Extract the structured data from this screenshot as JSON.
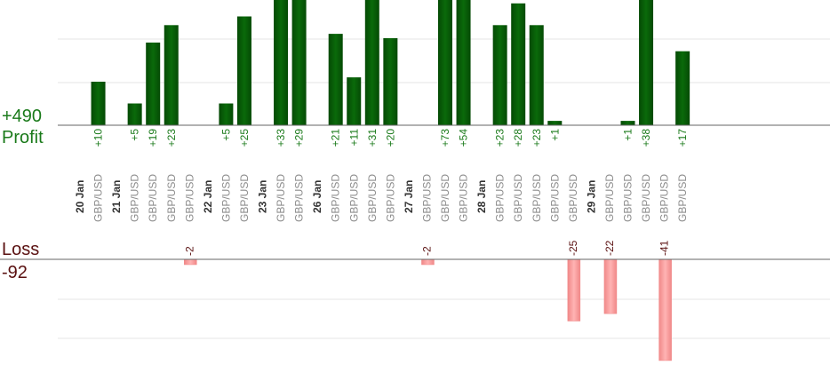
{
  "summary": {
    "profit_total": "+490",
    "profit_label": "Profit",
    "loss_label": "Loss",
    "loss_total": "-92"
  },
  "colors": {
    "profit_bar": "#0a6a0a",
    "profit_bar_dark": "#054a05",
    "profit_text": "#1a7a1a",
    "loss_bar": "#ffb3b3",
    "loss_bar_edge": "#f08888",
    "loss_text": "#5a1010",
    "axis": "#666666",
    "grid": "#e6e6e6",
    "date_text": "#333333",
    "pair_text": "#8c8c8c"
  },
  "chart_data": {
    "type": "bar",
    "axis_ranges": {
      "profit": [
        0,
        60
      ],
      "loss": [
        -45,
        0
      ]
    },
    "grid": true,
    "columns": [
      {
        "kind": "date",
        "label": "20 Jan"
      },
      {
        "kind": "trade",
        "label": "GBP/USD",
        "value": 10,
        "value_label": "+10"
      },
      {
        "kind": "date",
        "label": "21 Jan"
      },
      {
        "kind": "trade",
        "label": "GBP/USD",
        "value": 5,
        "value_label": "+5"
      },
      {
        "kind": "trade",
        "label": "GBP/USD",
        "value": 19,
        "value_label": "+19"
      },
      {
        "kind": "trade",
        "label": "GBP/USD",
        "value": 23,
        "value_label": "+23"
      },
      {
        "kind": "trade",
        "label": "GBP/USD",
        "value": -2,
        "value_label": "-2"
      },
      {
        "kind": "date",
        "label": "22 Jan"
      },
      {
        "kind": "trade",
        "label": "GBP/USD",
        "value": 5,
        "value_label": "+5"
      },
      {
        "kind": "trade",
        "label": "GBP/USD",
        "value": 25,
        "value_label": "+25"
      },
      {
        "kind": "date",
        "label": "23 Jan"
      },
      {
        "kind": "trade",
        "label": "GBP/USD",
        "value": 33,
        "value_label": "+33"
      },
      {
        "kind": "trade",
        "label": "GBP/USD",
        "value": 29,
        "value_label": "+29"
      },
      {
        "kind": "date",
        "label": "26 Jan"
      },
      {
        "kind": "trade",
        "label": "GBP/USD",
        "value": 21,
        "value_label": "+21"
      },
      {
        "kind": "trade",
        "label": "GBP/USD",
        "value": 11,
        "value_label": "+11"
      },
      {
        "kind": "trade",
        "label": "GBP/USD",
        "value": 31,
        "value_label": "+31"
      },
      {
        "kind": "trade",
        "label": "GBP/USD",
        "value": 20,
        "value_label": "+20"
      },
      {
        "kind": "date",
        "label": "27 Jan"
      },
      {
        "kind": "trade",
        "label": "GBP/USD",
        "value": -2,
        "value_label": "-2"
      },
      {
        "kind": "trade",
        "label": "GBP/USD",
        "value": 73,
        "value_label": "+73"
      },
      {
        "kind": "trade",
        "label": "GBP/USD",
        "value": 54,
        "value_label": "+54"
      },
      {
        "kind": "date",
        "label": "28 Jan"
      },
      {
        "kind": "trade",
        "label": "GBP/USD",
        "value": 23,
        "value_label": "+23"
      },
      {
        "kind": "trade",
        "label": "GBP/USD",
        "value": 28,
        "value_label": "+28"
      },
      {
        "kind": "trade",
        "label": "GBP/USD",
        "value": 23,
        "value_label": "+23"
      },
      {
        "kind": "trade",
        "label": "GBP/USD",
        "value": 1,
        "value_label": "+1"
      },
      {
        "kind": "trade",
        "label": "GBP/USD",
        "value": -25,
        "value_label": "-25"
      },
      {
        "kind": "date",
        "label": "29 Jan"
      },
      {
        "kind": "trade",
        "label": "GBP/USD",
        "value": -22,
        "value_label": "-22"
      },
      {
        "kind": "trade",
        "label": "GBP/USD",
        "value": 1,
        "value_label": "+1"
      },
      {
        "kind": "trade",
        "label": "GBP/USD",
        "value": 38,
        "value_label": "+38"
      },
      {
        "kind": "trade",
        "label": "GBP/USD",
        "value": -41,
        "value_label": "-41"
      },
      {
        "kind": "trade",
        "label": "GBP/USD",
        "value": 17,
        "value_label": "+17"
      }
    ]
  }
}
